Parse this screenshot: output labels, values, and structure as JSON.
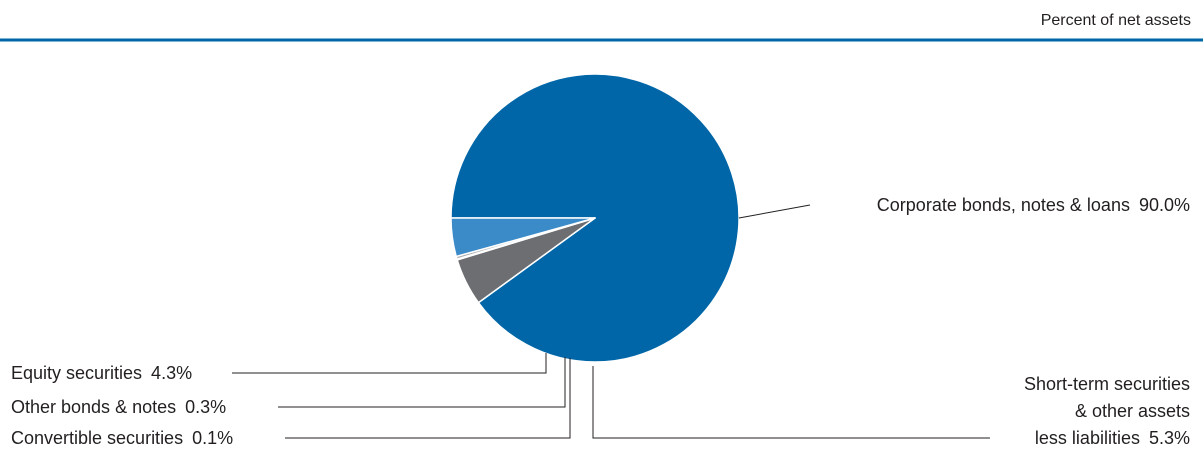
{
  "chart_data": {
    "type": "pie",
    "subtitle": "Percent of net assets",
    "slices": [
      {
        "label": "Corporate bonds, notes & loans",
        "value": 90.0,
        "value_label": "90.0%",
        "color": "#0066a8"
      },
      {
        "label": "Short-term securities & other assets less liabilities",
        "label_lines": [
          "Short-term securities",
          "& other assets",
          "less liabilities"
        ],
        "value": 5.3,
        "value_label": "5.3%",
        "color": "#6d6e71"
      },
      {
        "label": "Convertible securities",
        "value": 0.1,
        "value_label": "0.1%",
        "color": "#231f20"
      },
      {
        "label": "Other bonds & notes",
        "value": 0.3,
        "value_label": "0.3%",
        "color": "#a9abae"
      },
      {
        "label": "Equity securities",
        "value": 4.3,
        "value_label": "4.3%",
        "color": "#3b8bc9"
      }
    ],
    "header_rule_color": "#0066a8",
    "legend": "none",
    "grid": false
  }
}
